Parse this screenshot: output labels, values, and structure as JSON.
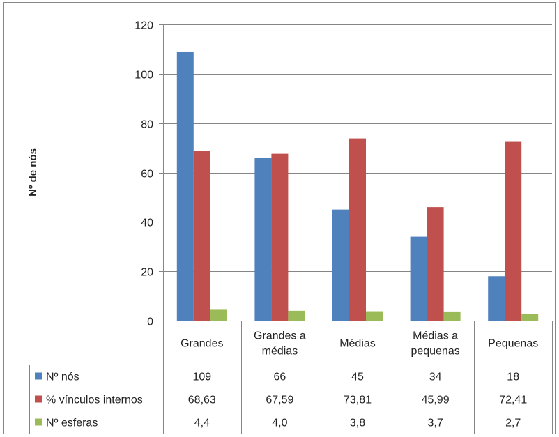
{
  "chart_data": {
    "type": "bar",
    "ylabel": "Nº de nós",
    "ylim": [
      0,
      120
    ],
    "yticks": [
      0,
      20,
      40,
      60,
      80,
      100,
      120
    ],
    "grid": true,
    "legend": "data-table",
    "categories": [
      [
        "Grandes"
      ],
      [
        "Grandes a",
        "médias"
      ],
      [
        "Médias"
      ],
      [
        "Médias a",
        "pequenas"
      ],
      [
        "Pequenas"
      ]
    ],
    "series": [
      {
        "name": "Nº nós",
        "color": "#4F81BD",
        "values": [
          109,
          66,
          45,
          34,
          18
        ],
        "labels": [
          "109",
          "66",
          "45",
          "34",
          "18"
        ]
      },
      {
        "name": "% vínculos internos",
        "color": "#C0504D",
        "values": [
          68.63,
          67.59,
          73.81,
          45.99,
          72.41
        ],
        "labels": [
          "68,63",
          "67,59",
          "73,81",
          "45,99",
          "72,41"
        ]
      },
      {
        "name": "Nº esferas",
        "color": "#9BBB59",
        "values": [
          4.4,
          4.0,
          3.8,
          3.7,
          2.7
        ],
        "labels": [
          "4,4",
          "4,0",
          "3,8",
          "3,7",
          "2,7"
        ]
      }
    ]
  }
}
